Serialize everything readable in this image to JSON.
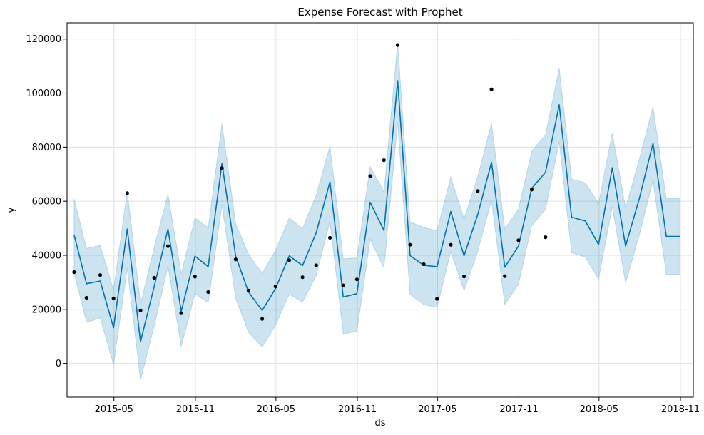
{
  "chart_data": {
    "type": "line",
    "title": "Expense Forecast with Prophet",
    "xlabel": "ds",
    "ylabel": "y",
    "x_tick_labels": [
      "2015-05",
      "2015-11",
      "2016-05",
      "2016-11",
      "2017-05",
      "2017-11",
      "2018-05",
      "2018-11"
    ],
    "x_ticks": [
      "2015-05-01",
      "2015-11-01",
      "2016-05-01",
      "2016-11-01",
      "2017-05-01",
      "2017-11-01",
      "2018-05-01",
      "2018-11-01"
    ],
    "y_ticks": [
      0,
      20000,
      40000,
      60000,
      80000,
      100000,
      120000
    ],
    "y_tick_labels": [
      "0",
      "20000",
      "40000",
      "60000",
      "80000",
      "100000",
      "120000"
    ],
    "xlim": [
      "2015-01-15",
      "2018-11-30"
    ],
    "ylim": [
      -12500,
      126000
    ],
    "grid": true,
    "colors": {
      "forecast_line": "#0072B2",
      "interval_fill": "#0072B2",
      "actual_points": "#000000",
      "grid": "#e0e0e0"
    },
    "actual": {
      "x": [
        "2015-01-31",
        "2015-02-28",
        "2015-03-31",
        "2015-04-30",
        "2015-05-31",
        "2015-06-30",
        "2015-07-31",
        "2015-08-31",
        "2015-09-30",
        "2015-10-31",
        "2015-11-30",
        "2015-12-31",
        "2016-01-31",
        "2016-02-29",
        "2016-03-31",
        "2016-04-30",
        "2016-05-31",
        "2016-06-30",
        "2016-07-31",
        "2016-08-31",
        "2016-09-30",
        "2016-10-31",
        "2016-11-30",
        "2016-12-31",
        "2017-01-31",
        "2017-02-28",
        "2017-03-31",
        "2017-04-30",
        "2017-05-31",
        "2017-06-30",
        "2017-07-31",
        "2017-08-31",
        "2017-09-30",
        "2017-10-31",
        "2017-11-30",
        "2017-12-31"
      ],
      "y": [
        33800,
        24300,
        32700,
        24100,
        63000,
        19600,
        31700,
        43400,
        18600,
        32100,
        26400,
        72200,
        38500,
        27000,
        16500,
        28500,
        38200,
        31900,
        36300,
        46500,
        28900,
        31100,
        69300,
        75200,
        117800,
        43900,
        36700,
        23900,
        43900,
        32200,
        63800,
        101400,
        32300,
        45600,
        64300,
        46700
      ]
    },
    "forecast": {
      "x": [
        "2015-01-31",
        "2015-02-28",
        "2015-03-31",
        "2015-04-30",
        "2015-05-31",
        "2015-06-30",
        "2015-07-31",
        "2015-08-31",
        "2015-09-30",
        "2015-10-31",
        "2015-11-30",
        "2015-12-31",
        "2016-01-31",
        "2016-02-29",
        "2016-03-31",
        "2016-04-30",
        "2016-05-31",
        "2016-06-30",
        "2016-07-31",
        "2016-08-31",
        "2016-09-30",
        "2016-10-31",
        "2016-11-30",
        "2016-12-31",
        "2017-01-31",
        "2017-02-28",
        "2017-03-31",
        "2017-04-30",
        "2017-05-31",
        "2017-06-30",
        "2017-07-31",
        "2017-08-31",
        "2017-09-30",
        "2017-10-31",
        "2017-11-30",
        "2017-12-31",
        "2018-01-31",
        "2018-02-28",
        "2018-03-31",
        "2018-04-30",
        "2018-05-31",
        "2018-06-30",
        "2018-07-31",
        "2018-08-31",
        "2018-09-30",
        "2018-10-31"
      ],
      "yhat": [
        47500,
        29500,
        30500,
        13200,
        49700,
        8000,
        28500,
        49700,
        19300,
        39700,
        35800,
        74000,
        39700,
        26400,
        19600,
        27700,
        39800,
        36200,
        48300,
        67200,
        24600,
        25800,
        59600,
        49200,
        104600,
        39900,
        36300,
        35800,
        56200,
        39800,
        55100,
        74400,
        35600,
        43400,
        64800,
        70700,
        95700,
        54100,
        52700,
        44000,
        72400,
        43400,
        61000,
        81400,
        47000,
        47000
      ],
      "yhat_lower": [
        33500,
        15200,
        16800,
        -500,
        35200,
        -6200,
        13800,
        36000,
        6200,
        25800,
        22500,
        58600,
        24000,
        11500,
        6100,
        14100,
        25600,
        22700,
        32500,
        52500,
        10900,
        11900,
        45900,
        35300,
        89000,
        25500,
        21800,
        20700,
        41300,
        27000,
        41400,
        60400,
        21800,
        29300,
        51000,
        57000,
        82000,
        41000,
        39300,
        31200,
        58000,
        29800,
        47500,
        67700,
        33000,
        33000
      ],
      "yhat_upper": [
        60800,
        42500,
        43700,
        27100,
        63700,
        22000,
        43000,
        62600,
        33200,
        53800,
        50200,
        88700,
        51800,
        40400,
        33400,
        41800,
        53800,
        49900,
        62300,
        80400,
        38700,
        39000,
        72800,
        63500,
        118500,
        52400,
        50300,
        49100,
        69000,
        53500,
        69100,
        88800,
        49800,
        57100,
        78500,
        84500,
        109200,
        68200,
        66800,
        59200,
        85200,
        57500,
        75600,
        95000,
        61000,
        61000
      ]
    }
  }
}
